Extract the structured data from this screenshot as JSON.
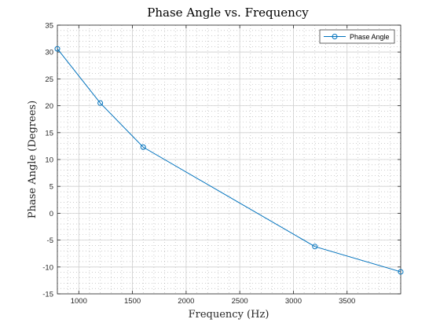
{
  "chart_data": {
    "type": "line",
    "title": "Phase Angle vs. Frequency",
    "xlabel": "Frequency (Hz)",
    "ylabel": "Phase Angle (Degrees)",
    "xlim": [
      800,
      4000
    ],
    "ylim": [
      -15,
      35
    ],
    "xticks": [
      1000,
      1500,
      2000,
      2500,
      3000,
      3500
    ],
    "yticks": [
      -15,
      -10,
      -5,
      0,
      5,
      10,
      15,
      20,
      25,
      30,
      35
    ],
    "grid": true,
    "minor_grid": true,
    "legend_position": "top-right",
    "series": [
      {
        "name": "Phase Angle",
        "color": "#0072BD",
        "marker": "circle",
        "x": [
          800,
          1200,
          1600,
          3200,
          4000
        ],
        "y": [
          30.6,
          20.5,
          12.3,
          -6.2,
          -10.9
        ]
      }
    ]
  }
}
